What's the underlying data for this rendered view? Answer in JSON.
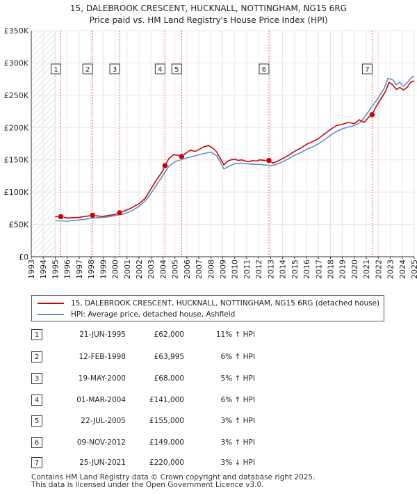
{
  "chart_data": {
    "type": "line",
    "title": "15, DALEBROOK CRESCENT, HUCKNALL, NOTTINGHAM, NG15 6RG",
    "subtitle": "Price paid vs. HM Land Registry's House Price Index (HPI)",
    "xlim": [
      1993,
      2025
    ],
    "ylim": [
      0,
      350000
    ],
    "x_ticks": [
      "1993",
      "1994",
      "1995",
      "1996",
      "1997",
      "1998",
      "1999",
      "2000",
      "2001",
      "2002",
      "2003",
      "2004",
      "2005",
      "2006",
      "2007",
      "2008",
      "2009",
      "2010",
      "2011",
      "2012",
      "2013",
      "2014",
      "2014",
      "2015",
      "2016",
      "2017",
      "2018",
      "2019",
      "2020",
      "2021",
      "2022",
      "2023",
      "2024",
      "2025"
    ],
    "y_ticks": [
      0,
      50000,
      100000,
      150000,
      200000,
      250000,
      300000,
      350000
    ],
    "y_tick_labels": [
      "£0",
      "£50K",
      "£100K",
      "£150K",
      "£200K",
      "£250K",
      "£300K",
      "£350K"
    ],
    "hatched_region": [
      1993,
      1995
    ],
    "series": [
      {
        "name": "15, DALEBROOK CRESCENT, HUCKNALL, NOTTINGHAM, NG15 6RG (detached house)",
        "color": "#cc0000",
        "x": [
          1995.0,
          1995.47,
          1996.0,
          1996.5,
          1997.0,
          1997.5,
          1998.12,
          1998.6,
          1999.0,
          1999.5,
          2000.0,
          2000.38,
          2000.8,
          2001.2,
          2001.6,
          2002.0,
          2002.5,
          2003.0,
          2003.5,
          2004.0,
          2004.17,
          2004.5,
          2004.9,
          2005.3,
          2005.56,
          2005.9,
          2006.3,
          2006.7,
          2007.0,
          2007.4,
          2007.8,
          2008.2,
          2008.5,
          2008.8,
          2009.1,
          2009.4,
          2009.7,
          2010.0,
          2010.3,
          2010.6,
          2010.9,
          2011.2,
          2011.5,
          2011.8,
          2012.1,
          2012.5,
          2012.86,
          2013.2,
          2013.6,
          2014.0,
          2014.5,
          2015.0,
          2015.5,
          2016.0,
          2016.5,
          2017.0,
          2017.5,
          2018.0,
          2018.5,
          2019.0,
          2019.5,
          2020.0,
          2020.4,
          2020.8,
          2021.2,
          2021.48,
          2021.8,
          2022.2,
          2022.6,
          2022.9,
          2023.2,
          2023.5,
          2023.8,
          2024.1,
          2024.4,
          2024.7,
          2025.0
        ],
        "y": [
          62000,
          62000,
          60000,
          60500,
          61000,
          62500,
          63995,
          63000,
          62500,
          64000,
          65500,
          68000,
          71000,
          74000,
          78000,
          82000,
          90000,
          105000,
          120000,
          133000,
          141000,
          152000,
          158000,
          157000,
          155000,
          160000,
          165000,
          163000,
          166000,
          170000,
          172000,
          168000,
          162000,
          152000,
          142000,
          148000,
          150000,
          151000,
          149000,
          150000,
          148000,
          147000,
          149000,
          148000,
          150000,
          149000,
          149000,
          145000,
          148000,
          152000,
          157000,
          163000,
          168000,
          174000,
          178000,
          183000,
          190000,
          197000,
          203000,
          205000,
          208000,
          206000,
          212000,
          208000,
          216000,
          220000,
          232000,
          244000,
          256000,
          270000,
          266000,
          259000,
          262000,
          258000,
          262000,
          270000,
          272000
        ]
      },
      {
        "name": "HPI: Average price, detached house, Ashfield",
        "color": "#5b8fd0",
        "x": [
          1995.0,
          1995.5,
          1996.0,
          1996.5,
          1997.0,
          1997.5,
          1998.0,
          1998.5,
          1999.0,
          1999.5,
          2000.0,
          2000.5,
          2001.0,
          2001.5,
          2002.0,
          2002.5,
          2003.0,
          2003.5,
          2004.0,
          2004.5,
          2005.0,
          2005.5,
          2006.0,
          2006.5,
          2007.0,
          2007.5,
          2008.0,
          2008.5,
          2008.8,
          2009.1,
          2009.5,
          2010.0,
          2010.5,
          2011.0,
          2011.5,
          2012.0,
          2012.5,
          2013.0,
          2013.5,
          2014.0,
          2014.5,
          2015.0,
          2015.5,
          2016.0,
          2016.5,
          2017.0,
          2017.5,
          2018.0,
          2018.5,
          2019.0,
          2019.5,
          2020.0,
          2020.5,
          2021.0,
          2021.5,
          2022.0,
          2022.5,
          2022.8,
          2023.2,
          2023.5,
          2023.8,
          2024.1,
          2024.4,
          2024.7,
          2025.0
        ],
        "y": [
          56000,
          55500,
          55000,
          56000,
          57000,
          58000,
          59500,
          60500,
          61000,
          62000,
          63500,
          65000,
          68000,
          72000,
          78000,
          86000,
          98000,
          112000,
          126000,
          140000,
          147000,
          150000,
          153000,
          155000,
          158000,
          160000,
          162000,
          156000,
          146000,
          136000,
          140000,
          144000,
          145000,
          144000,
          143000,
          143000,
          142000,
          141000,
          143000,
          147000,
          152000,
          157000,
          161000,
          166000,
          170000,
          175000,
          181000,
          188000,
          194000,
          198000,
          201000,
          203000,
          208000,
          220000,
          233000,
          246000,
          261000,
          276000,
          274000,
          266000,
          270000,
          264000,
          269000,
          276000,
          280000
        ]
      }
    ],
    "sales": [
      {
        "num": "1",
        "date": "21-JUN-1995",
        "price": "£62,000",
        "hpi": "11% ↑ HPI",
        "x": 1995.47,
        "y": 62000
      },
      {
        "num": "2",
        "date": "12-FEB-1998",
        "price": "£63,995",
        "hpi": "6% ↑ HPI",
        "x": 1998.12,
        "y": 63995
      },
      {
        "num": "3",
        "date": "19-MAY-2000",
        "price": "£68,000",
        "hpi": "5% ↑ HPI",
        "x": 2000.38,
        "y": 68000
      },
      {
        "num": "4",
        "date": "01-MAR-2004",
        "price": "£141,000",
        "hpi": "6% ↑ HPI",
        "x": 2004.17,
        "y": 141000
      },
      {
        "num": "5",
        "date": "22-JUL-2005",
        "price": "£155,000",
        "hpi": "3% ↑ HPI",
        "x": 2005.56,
        "y": 155000
      },
      {
        "num": "6",
        "date": "09-NOV-2012",
        "price": "£149,000",
        "hpi": "3% ↑ HPI",
        "x": 2012.86,
        "y": 149000
      },
      {
        "num": "7",
        "date": "25-JUN-2021",
        "price": "£220,000",
        "hpi": "3% ↓ HPI",
        "x": 2021.48,
        "y": 220000
      }
    ]
  },
  "footer": {
    "line1": "Contains HM Land Registry data © Crown copyright and database right 2025.",
    "line2": "This data is licensed under the Open Government Licence v3.0."
  },
  "colors": {
    "property": "#cc0000",
    "hpi": "#5b8fd0",
    "grid": "#e6e6e6",
    "vline": "#e06060"
  }
}
